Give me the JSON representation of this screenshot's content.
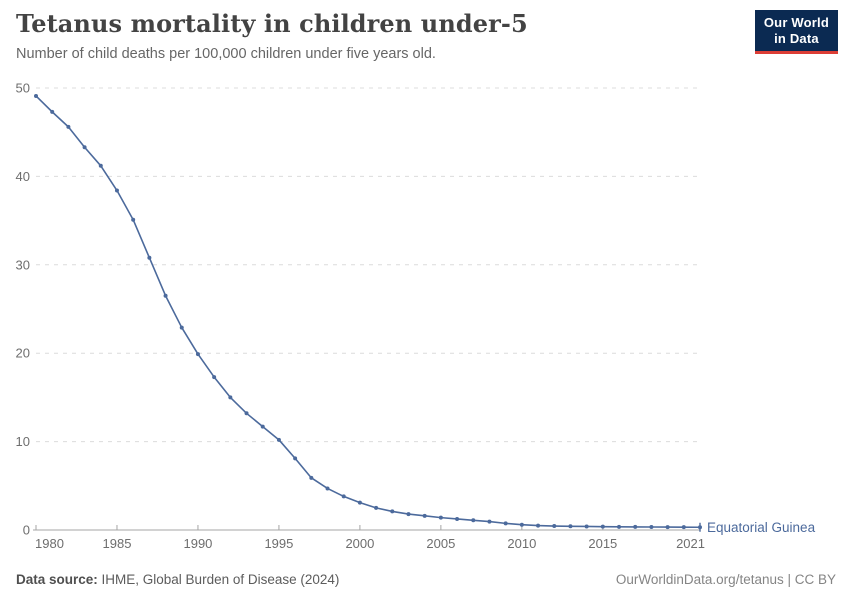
{
  "header": {
    "title": "Tetanus mortality in children under-5",
    "subtitle": "Number of child deaths per 100,000 children under five years old.",
    "logo": {
      "line1": "Our World",
      "line2": "in Data"
    }
  },
  "footer": {
    "source_label": "Data source:",
    "source_text": " IHME, Global Burden of Disease (2024)",
    "credit": "OurWorldinData.org/tetanus | CC BY"
  },
  "colors": {
    "line": "#4C6A9C",
    "entity_label": "#4C6A9C",
    "grid": "#dcdcdc",
    "axis": "#a5a5a5",
    "tick_text": "#6e6e6e",
    "logo_bg": "#0b2a52",
    "logo_red": "#dc3e36"
  },
  "chart_data": {
    "type": "line",
    "title": "Tetanus mortality in children under-5",
    "subtitle": "Number of child deaths per 100,000 children under five years old.",
    "xlabel": "",
    "ylabel": "",
    "xlim": [
      1980,
      2021
    ],
    "ylim": [
      0,
      50
    ],
    "x_ticks": [
      1980,
      1985,
      1990,
      1995,
      2000,
      2005,
      2010,
      2015,
      2021
    ],
    "y_ticks": [
      0,
      10,
      20,
      30,
      40,
      50
    ],
    "grid": "horizontal-dashed",
    "legend_position": "end-of-line-label",
    "series": [
      {
        "name": "Equatorial Guinea",
        "color": "#4C6A9C",
        "x": [
          1980,
          1981,
          1982,
          1983,
          1984,
          1985,
          1986,
          1987,
          1988,
          1989,
          1990,
          1991,
          1992,
          1993,
          1994,
          1995,
          1996,
          1997,
          1998,
          1999,
          2000,
          2001,
          2002,
          2003,
          2004,
          2005,
          2006,
          2007,
          2008,
          2009,
          2010,
          2011,
          2012,
          2013,
          2014,
          2015,
          2016,
          2017,
          2018,
          2019,
          2020,
          2021
        ],
        "values": [
          49.1,
          47.3,
          45.6,
          43.3,
          41.2,
          38.4,
          35.1,
          30.8,
          26.5,
          22.9,
          19.9,
          17.3,
          15.0,
          13.2,
          11.7,
          10.2,
          8.1,
          5.9,
          4.7,
          3.8,
          3.1,
          2.5,
          2.1,
          1.8,
          1.6,
          1.4,
          1.25,
          1.1,
          0.95,
          0.75,
          0.6,
          0.5,
          0.45,
          0.42,
          0.4,
          0.38,
          0.36,
          0.35,
          0.34,
          0.33,
          0.32,
          0.31
        ]
      }
    ]
  }
}
